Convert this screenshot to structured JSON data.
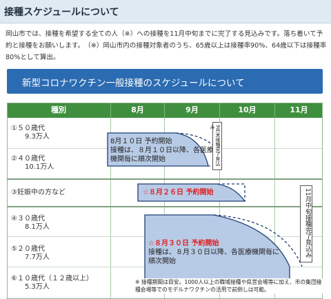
{
  "heading": "接種スケジュールについて",
  "intro_text": "岡山市では、接種を希望する全ての人（※）への接種を11月中旬までに完了する見込みです。落ち着いて予約と接種をお願いします。　（※）岡山市内の接種対象者のうち、65歳以上は接種率90%、64歳以下は接種率80%として算出。",
  "banner_title": "新型コロナワクチン一般接種のスケジュールについて",
  "table": {
    "headers": [
      "種別",
      "8月",
      "9月",
      "10月",
      "11月"
    ],
    "rows": [
      {
        "label": "①５０歳代",
        "count": "9.3万人"
      },
      {
        "label": "②４０歳代",
        "count": "10.1万人"
      },
      {
        "label": "③妊娠中の方など",
        "count": ""
      },
      {
        "label": "④３０歳代",
        "count": "8.1万人"
      },
      {
        "label": "⑤２０歳代",
        "count": "7.7万人"
      },
      {
        "label": "⑥１０歳代（１２歳以上）",
        "count": "5.3万人"
      }
    ]
  },
  "notes": {
    "group1_line1": "8月１０日  予約開始",
    "group1_line2": "接種は、８月１０日以降、各医療",
    "group1_line3": "機関毎に順次開始",
    "group2_line1": "☆８月２６日  予約開始",
    "group3_line1": "☆８月３０日  予約開始",
    "group3_line2": "接種は、８月３０日以降、各医療機関毎に",
    "group3_line3": "順次開始",
    "vertical_sep": "9月末接種完了見込み",
    "vertical_nov": "11月中旬接種完了見込み"
  },
  "footnote": "※  接種期間は目安。1000人以上の職域接種や県営会場等に加え、市の集団接種会場等でのモデルナワクチンの活用で前倒しは可能。",
  "colors": {
    "header_green": "#3f8f3f",
    "banner_blue": "#2b6bb2",
    "bar_fill": "#b8cbe6",
    "bar_border": "#1f3f75",
    "highlight_red": "#e02020"
  }
}
